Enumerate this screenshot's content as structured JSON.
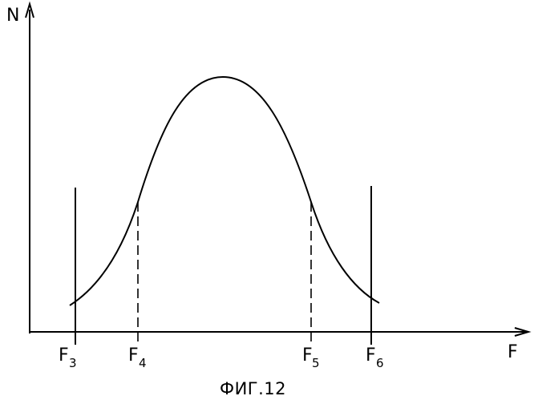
{
  "axes": {
    "y_label": "N",
    "x_label": "F"
  },
  "markers": [
    {
      "id": "f3",
      "main": "F",
      "sub": "3",
      "style": "solid"
    },
    {
      "id": "f4",
      "main": "F",
      "sub": "4",
      "style": "dashed"
    },
    {
      "id": "f5",
      "main": "F",
      "sub": "5",
      "style": "dashed"
    },
    {
      "id": "f6",
      "main": "F",
      "sub": "6",
      "style": "solid"
    }
  ],
  "caption": "ФИГ.12",
  "colors": {
    "ink": "#000000",
    "background": "#ffffff"
  }
}
